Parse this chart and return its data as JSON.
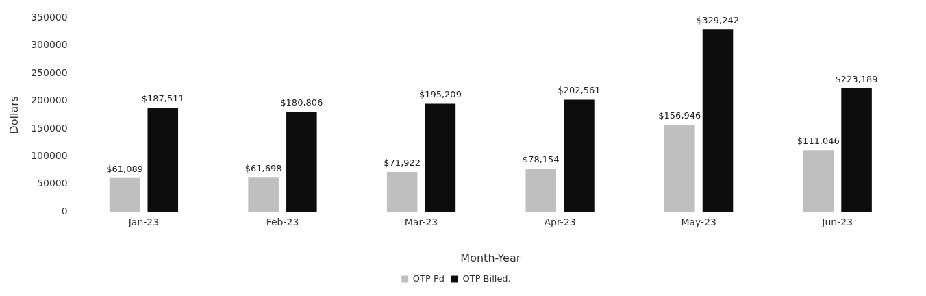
{
  "chart_data": {
    "type": "bar",
    "xlabel": "Month-Year",
    "ylabel": "Dollars",
    "categories": [
      "Jan-23",
      "Feb-23",
      "Mar-23",
      "Apr-23",
      "May-23",
      "Jun-23"
    ],
    "series": [
      {
        "name": "OTP Pd",
        "color": "#bfbfbf",
        "values": [
          61089,
          61698,
          71922,
          78154,
          156946,
          111046
        ],
        "value_labels": [
          "$61,089",
          "$61,698",
          "$71,922",
          "$78,154",
          "$156,946",
          "$111,046"
        ]
      },
      {
        "name": "OTP Billed.",
        "color": "#0d0d0d",
        "values": [
          187511,
          180806,
          195209,
          202561,
          329242,
          223189
        ],
        "value_labels": [
          "$187,511",
          "$180,806",
          "$195,209",
          "$202,561",
          "$329,242",
          "$223,189"
        ]
      }
    ],
    "ylim": [
      0,
      350000
    ],
    "yticks": [
      0,
      50000,
      100000,
      150000,
      200000,
      250000,
      300000,
      350000
    ],
    "grid": false,
    "legend": "bottom"
  }
}
